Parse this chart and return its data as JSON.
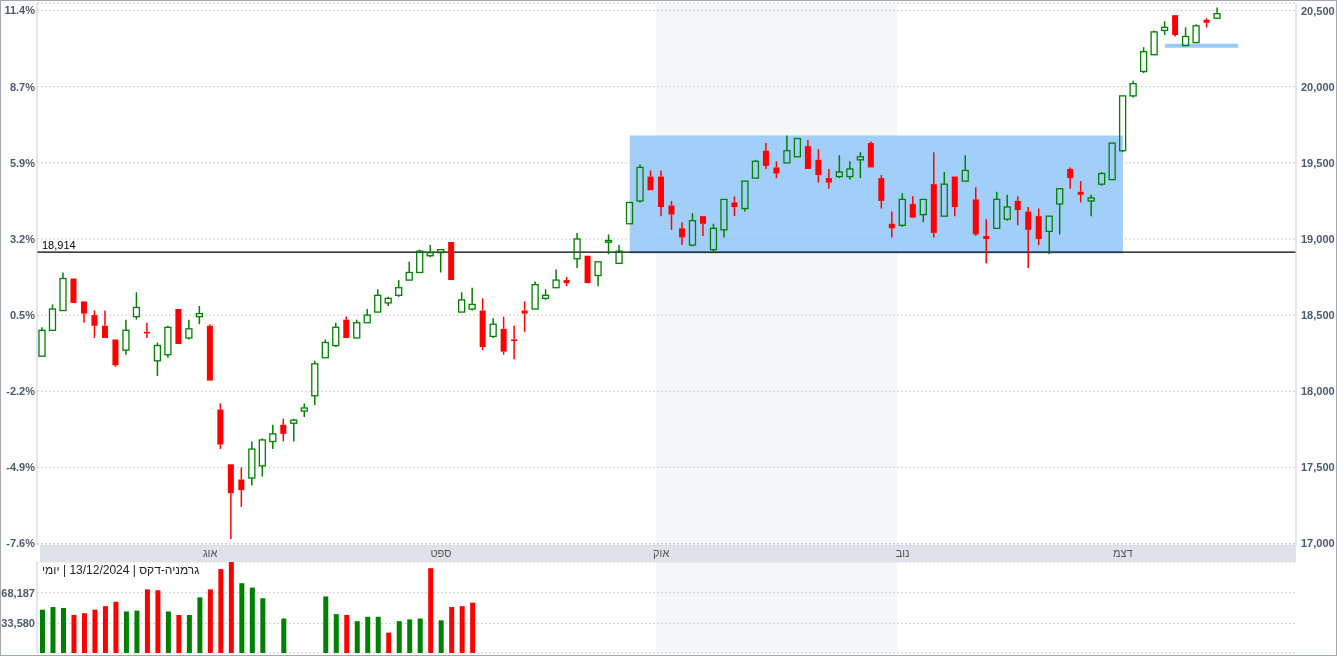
{
  "chart_data": [
    {
      "type": "candlestick",
      "categories": [
        null,
        null,
        null,
        null,
        null,
        null,
        null,
        null,
        null,
        null,
        null,
        null,
        null,
        null,
        null,
        null,
        "אוג",
        null,
        null,
        null,
        null,
        null,
        null,
        null,
        null,
        null,
        null,
        null,
        null,
        null,
        null,
        null,
        null,
        null,
        null,
        null,
        null,
        null,
        "ספט",
        null,
        null,
        null,
        null,
        null,
        null,
        null,
        null,
        null,
        null,
        null,
        null,
        null,
        null,
        null,
        null,
        null,
        null,
        null,
        null,
        "אוק",
        null,
        null,
        null,
        null,
        null,
        null,
        null,
        null,
        null,
        null,
        null,
        null,
        null,
        null,
        null,
        null,
        null,
        null,
        null,
        null,
        null,
        null,
        "נוב",
        null,
        null,
        null,
        null,
        null,
        null,
        null,
        null,
        null,
        null,
        null,
        null,
        null,
        null,
        null,
        null,
        null,
        null,
        null,
        null,
        "דצמ",
        null,
        null,
        null,
        null,
        null,
        null,
        null,
        null,
        null,
        null,
        null,
        null,
        null,
        null,
        null,
        null
      ],
      "series": [
        {
          "type": "area",
          "axis": "y2",
          "color": "#99cbf9",
          "values": [
            null,
            null,
            null,
            null,
            null,
            null,
            null,
            null,
            null,
            null,
            null,
            null,
            null,
            null,
            null,
            null,
            null,
            null,
            null,
            null,
            null,
            null,
            null,
            null,
            null,
            null,
            null,
            null,
            null,
            null,
            null,
            null,
            null,
            null,
            null,
            null,
            null,
            null,
            null,
            null,
            null,
            null,
            null,
            null,
            null,
            null,
            null,
            null,
            null,
            null,
            null,
            null,
            null,
            null,
            null,
            null,
            null,
            null,
            null,
            null,
            null,
            null,
            null,
            null,
            null,
            null,
            null,
            null,
            null,
            null,
            null,
            null,
            null,
            null,
            null,
            null,
            null,
            null,
            null,
            null,
            null,
            null,
            null,
            null,
            null,
            null,
            null,
            null,
            null,
            null,
            null,
            null,
            null,
            null,
            null,
            null,
            null,
            null,
            null,
            null,
            null,
            null,
            null,
            null,
            null,
            null,
            null,
            null,
            null,
            null,
            null,
            null,
            null,
            null,
            null,
            null,
            null,
            null,
            null,
            null
          ],
          "lower": [
            null,
            null,
            null,
            null,
            null,
            null,
            null,
            null,
            null,
            null,
            null,
            null,
            null,
            null,
            null,
            null,
            null,
            null,
            null,
            null,
            null,
            null,
            null,
            null,
            null,
            null,
            null,
            null,
            null,
            null,
            null,
            null,
            null,
            null,
            null,
            null,
            null,
            null,
            null,
            null,
            null,
            null,
            null,
            null,
            null,
            null,
            null,
            null,
            null,
            null,
            null,
            null,
            null,
            null,
            null,
            null,
            18905,
            18905,
            18905,
            18905,
            18905,
            18905,
            18905,
            18905,
            18905,
            18905,
            18905,
            18905,
            18905,
            18905,
            18905,
            18905,
            18905,
            18905,
            18905,
            18905,
            18905,
            18905,
            18905,
            18905,
            18905,
            18905,
            18905,
            18905,
            18905,
            18905,
            18905,
            18905,
            18905,
            18905,
            18905,
            18905,
            18905,
            18905,
            18905,
            18905,
            18905,
            18905,
            18905,
            18905,
            18905,
            18905,
            18905,
            18905,
            null,
            null,
            null,
            null,
            null,
            null,
            null,
            null,
            null,
            null,
            null,
            null,
            null,
            null,
            null,
            null
          ],
          "upper": [
            null,
            null,
            null,
            null,
            null,
            null,
            null,
            null,
            null,
            null,
            null,
            null,
            null,
            null,
            null,
            null,
            null,
            null,
            null,
            null,
            null,
            null,
            null,
            null,
            null,
            null,
            null,
            null,
            null,
            null,
            null,
            null,
            null,
            null,
            null,
            null,
            null,
            null,
            null,
            null,
            null,
            null,
            null,
            null,
            null,
            null,
            null,
            null,
            null,
            null,
            null,
            null,
            null,
            null,
            null,
            null,
            19680,
            19680,
            19680,
            19680,
            19680,
            19680,
            19680,
            19680,
            19680,
            19680,
            19680,
            19680,
            19680,
            19680,
            19680,
            19680,
            19680,
            19680,
            19680,
            19680,
            19680,
            19680,
            19680,
            19680,
            19680,
            19680,
            19680,
            19680,
            19680,
            19680,
            19680,
            19680,
            19680,
            19680,
            19680,
            19680,
            19680,
            19680,
            19680,
            19680,
            19680,
            19680,
            19680,
            19680,
            19680,
            19680,
            19680,
            19680,
            null,
            null,
            null,
            null,
            null,
            null,
            null,
            null,
            null,
            null,
            null,
            null,
            null,
            null,
            null,
            null
          ]
        },
        {
          "type": "line",
          "axis": "y2",
          "color": "#99cbf9",
          "values": [
            null,
            null,
            null,
            null,
            null,
            null,
            null,
            null,
            null,
            null,
            null,
            null,
            null,
            null,
            null,
            null,
            null,
            null,
            null,
            null,
            null,
            null,
            null,
            null,
            null,
            null,
            null,
            null,
            null,
            null,
            null,
            null,
            null,
            null,
            null,
            null,
            null,
            null,
            null,
            null,
            null,
            null,
            null,
            null,
            null,
            null,
            null,
            null,
            null,
            null,
            null,
            null,
            null,
            null,
            null,
            null,
            null,
            null,
            null,
            null,
            null,
            null,
            null,
            null,
            null,
            null,
            null,
            null,
            null,
            null,
            null,
            null,
            null,
            null,
            null,
            null,
            null,
            null,
            null,
            null,
            null,
            null,
            null,
            null,
            null,
            null,
            null,
            null,
            null,
            null,
            null,
            null,
            null,
            null,
            null,
            null,
            null,
            null,
            null,
            null,
            null,
            null,
            null,
            null,
            null,
            null,
            null,
            20270,
            20270,
            20270,
            20270,
            20270,
            20270,
            20270,
            20270,
            null,
            null,
            null,
            null,
            null
          ]
        },
        {
          "axis": "y2",
          "ohlc": [
            [
              18230,
              18420,
              18230,
              18400
            ],
            [
              18400,
              18570,
              18400,
              18540
            ],
            [
              18530,
              18780,
              18530,
              18740
            ],
            [
              18740,
              18740,
              18580,
              18580
            ],
            [
              18590,
              18590,
              18450,
              18510
            ],
            [
              18500,
              18530,
              18350,
              18430
            ],
            [
              18430,
              18530,
              18350,
              18350
            ],
            [
              18340,
              18340,
              18160,
              18170
            ],
            [
              18270,
              18470,
              18240,
              18400
            ],
            [
              18490,
              18650,
              18470,
              18550
            ],
            [
              18390,
              18450,
              18350,
              18380
            ],
            [
              18200,
              18320,
              18100,
              18300
            ],
            [
              18240,
              18430,
              18220,
              18420
            ],
            [
              18540,
              18540,
              18310,
              18310
            ],
            [
              18350,
              18470,
              18340,
              18410
            ],
            [
              18490,
              18560,
              18440,
              18510
            ],
            [
              18430,
              18440,
              18070,
              18070
            ],
            [
              17880,
              17920,
              17620,
              17650
            ],
            [
              17520,
              17520,
              17030,
              17330
            ],
            [
              17420,
              17500,
              17240,
              17350
            ],
            [
              17430,
              17670,
              17380,
              17620
            ],
            [
              17510,
              17690,
              17440,
              17680
            ],
            [
              17670,
              17780,
              17620,
              17720
            ],
            [
              17780,
              17820,
              17670,
              17720
            ],
            [
              17790,
              17820,
              17670,
              17810
            ],
            [
              17870,
              17920,
              17830,
              17890
            ],
            [
              17970,
              18200,
              17910,
              18180
            ],
            [
              18220,
              18340,
              18220,
              18320
            ],
            [
              18300,
              18450,
              18290,
              18420
            ],
            [
              18470,
              18490,
              18350,
              18350
            ],
            [
              18350,
              18470,
              18350,
              18450
            ],
            [
              18450,
              18540,
              18450,
              18500
            ],
            [
              18520,
              18670,
              18520,
              18630
            ],
            [
              18580,
              18620,
              18560,
              18610
            ],
            [
              18630,
              18730,
              18620,
              18680
            ],
            [
              18730,
              18850,
              18730,
              18780
            ],
            [
              18780,
              18930,
              18780,
              18920
            ],
            [
              18890,
              18960,
              18880,
              18910
            ],
            [
              18910,
              18930,
              18780,
              18930
            ],
            [
              18980,
              18980,
              18730,
              18730
            ],
            [
              18520,
              18650,
              18520,
              18600
            ],
            [
              18540,
              18680,
              18530,
              18570
            ],
            [
              18530,
              18610,
              18270,
              18290
            ],
            [
              18360,
              18480,
              18350,
              18440
            ],
            [
              18410,
              18490,
              18240,
              18260
            ],
            [
              18340,
              18430,
              18210,
              18330
            ],
            [
              18530,
              18590,
              18390,
              18510
            ],
            [
              18540,
              18720,
              18540,
              18700
            ],
            [
              18610,
              18670,
              18600,
              18630
            ],
            [
              18680,
              18800,
              18680,
              18730
            ],
            [
              18730,
              18750,
              18690,
              18710
            ],
            [
              18870,
              19040,
              18810,
              19000
            ],
            [
              18890,
              18890,
              18710,
              18710
            ],
            [
              18760,
              18850,
              18690,
              18850
            ],
            [
              18980,
              19030,
              18900,
              18990
            ],
            [
              18840,
              18960,
              18840,
              18920
            ],
            [
              19100,
              19240,
              19100,
              19240
            ],
            [
              19250,
              19490,
              19240,
              19470
            ],
            [
              19410,
              19450,
              19320,
              19320
            ],
            [
              19410,
              19450,
              19150,
              19210
            ],
            [
              19220,
              19250,
              19060,
              19160
            ],
            [
              19070,
              19110,
              18960,
              19010
            ],
            [
              18960,
              19170,
              18950,
              19120
            ],
            [
              19150,
              19150,
              19020,
              19100
            ],
            [
              18930,
              19100,
              18910,
              19070
            ],
            [
              19060,
              19260,
              19010,
              19260
            ],
            [
              19240,
              19280,
              19150,
              19210
            ],
            [
              19200,
              19380,
              19180,
              19380
            ],
            [
              19400,
              19520,
              19400,
              19510
            ],
            [
              19580,
              19630,
              19460,
              19480
            ],
            [
              19470,
              19510,
              19400,
              19430
            ],
            [
              19500,
              19680,
              19500,
              19580
            ],
            [
              19540,
              19660,
              19540,
              19660
            ],
            [
              19610,
              19650,
              19460,
              19460
            ],
            [
              19520,
              19590,
              19370,
              19420
            ],
            [
              19400,
              19460,
              19330,
              19370
            ],
            [
              19410,
              19550,
              19400,
              19440
            ],
            [
              19410,
              19510,
              19390,
              19460
            ],
            [
              19520,
              19570,
              19400,
              19540
            ],
            [
              19630,
              19640,
              19470,
              19470
            ],
            [
              19400,
              19420,
              19200,
              19250
            ],
            [
              19100,
              19180,
              19010,
              19070
            ],
            [
              19090,
              19300,
              19080,
              19260
            ],
            [
              19230,
              19280,
              19140,
              19140
            ],
            [
              19160,
              19260,
              19110,
              19260
            ],
            [
              19360,
              19570,
              19010,
              19040
            ],
            [
              19150,
              19440,
              19150,
              19360
            ],
            [
              19410,
              19410,
              19150,
              19210
            ],
            [
              19380,
              19550,
              19380,
              19450
            ],
            [
              19260,
              19340,
              19020,
              19030
            ],
            [
              19020,
              19130,
              18840,
              19000
            ],
            [
              19070,
              19310,
              19070,
              19260
            ],
            [
              19130,
              19290,
              19120,
              19210
            ],
            [
              19250,
              19280,
              19090,
              19190
            ],
            [
              19180,
              19210,
              18810,
              19060
            ],
            [
              19150,
              19200,
              18960,
              19000
            ],
            [
              19050,
              19150,
              18900,
              19150
            ],
            [
              19230,
              19330,
              19030,
              19330
            ],
            [
              19460,
              19470,
              19330,
              19400
            ],
            [
              19310,
              19380,
              19240,
              19290
            ],
            [
              19250,
              19290,
              19150,
              19270
            ],
            [
              19360,
              19440,
              19350,
              19430
            ],
            [
              19390,
              19630,
              19390,
              19630
            ],
            [
              19580,
              19940,
              19570,
              19940
            ],
            [
              19940,
              20040,
              19930,
              20020
            ],
            [
              20100,
              20260,
              20090,
              20230
            ],
            [
              20210,
              20370,
              20210,
              20360
            ],
            [
              20370,
              20430,
              20340,
              20390
            ],
            [
              20470,
              20470,
              20330,
              20340
            ],
            [
              20270,
              20390,
              20270,
              20330
            ],
            [
              20290,
              20410,
              20290,
              20400
            ],
            [
              20440,
              20450,
              20390,
              20420
            ],
            [
              20450,
              20520,
              20450,
              20480
            ],
            null,
            null,
            null,
            null,
            null,
            null,
            null
          ],
          "colors": [
            "#008000",
            "#008000",
            "#008000",
            "#ff0000",
            "#ff0000",
            "#ff0000",
            "#ff0000",
            "#ff0000",
            "#008000",
            "#008000",
            "#ff0000",
            "#008000",
            "#008000",
            "#ff0000",
            "#008000",
            "#008000",
            "#ff0000",
            "#ff0000",
            "#ff0000",
            "#ff0000",
            "#008000",
            "#008000",
            "#008000",
            "#ff0000",
            "#008000",
            "#008000",
            "#008000",
            "#008000",
            "#008000",
            "#ff0000",
            "#008000",
            "#008000",
            "#008000",
            "#008000",
            "#008000",
            "#008000",
            "#008000",
            "#008000",
            "#008000",
            "#ff0000",
            "#008000",
            "#008000",
            "#ff0000",
            "#008000",
            "#ff0000",
            "#ff0000",
            "#ff0000",
            "#008000",
            "#008000",
            "#008000",
            "#ff0000",
            "#008000",
            "#ff0000",
            "#008000",
            "#008000",
            "#008000",
            "#008000",
            "#008000",
            "#ff0000",
            "#ff0000",
            "#ff0000",
            "#ff0000",
            "#008000",
            "#ff0000",
            "#008000",
            "#008000",
            "#ff0000",
            "#008000",
            "#008000",
            "#ff0000",
            "#ff0000",
            "#008000",
            "#008000",
            "#ff0000",
            "#ff0000",
            "#ff0000",
            "#008000",
            "#008000",
            "#008000",
            "#ff0000",
            "#ff0000",
            "#ff0000",
            "#008000",
            "#ff0000",
            "#008000",
            "#ff0000",
            "#008000",
            "#ff0000",
            "#008000",
            "#ff0000",
            "#ff0000",
            "#008000",
            "#008000",
            "#ff0000",
            "#ff0000",
            "#ff0000",
            "#008000",
            "#008000",
            "#ff0000",
            "#ff0000",
            "#008000",
            "#008000",
            "#008000",
            "#008000",
            "#008000",
            "#008000",
            "#008000",
            "#008000",
            "#ff0000",
            "#008000",
            "#008000",
            "#ff0000",
            "#008000",
            null,
            null,
            null,
            null,
            null,
            null,
            null
          ]
        }
      ],
      "ylim": [
        -7.7,
        11.64
      ],
      "yticks": [
        {
          "value": -7.644,
          "label": "-7.6%"
        },
        {
          "value": -4.927,
          "label": "-4.9%"
        },
        {
          "value": -2.211,
          "label": "-2.2%"
        },
        {
          "value": 0.505,
          "label": "0.5%"
        },
        {
          "value": 3.222,
          "label": "3.2%"
        },
        {
          "value": 5.938,
          "label": "5.9%"
        },
        {
          "value": 8.654,
          "label": "8.7%"
        },
        {
          "value": 11.37,
          "label": "11.4%"
        }
      ],
      "y2lim": [
        16990,
        20550
      ],
      "y2ticks": [
        {
          "value": 17000,
          "label": "17,000"
        },
        {
          "value": 17500,
          "label": "17,500"
        },
        {
          "value": 18000,
          "label": "18,000"
        },
        {
          "value": 18500,
          "label": "18,500"
        },
        {
          "value": 19000,
          "label": "19,000"
        },
        {
          "value": 19500,
          "label": "19,500"
        },
        {
          "value": 20000,
          "label": "20,000"
        },
        {
          "value": 20500,
          "label": "20,500"
        }
      ],
      "ref_lines": [
        {
          "axis": "y2",
          "value": 18914,
          "label": "18,914",
          "color": "#000000"
        }
      ],
      "bands": [
        {
          "axis": "x",
          "from": "אוק",
          "to": "נוב",
          "color": "#f4f6f8"
        }
      ],
      "grid": "y"
    },
    {
      "type": "bar",
      "title": "גרמניה-דקס | 13/12/2024 | יומי",
      "categories": [
        null,
        null,
        null,
        null,
        null,
        null,
        null,
        null,
        null,
        null,
        null,
        null,
        null,
        null,
        null,
        null,
        "אוג",
        null,
        null,
        null,
        null,
        null,
        null,
        null,
        null,
        null,
        null,
        null,
        null,
        null,
        null,
        null,
        null,
        null,
        null,
        null,
        null,
        null,
        "ספט",
        null,
        null,
        null,
        null,
        null,
        null,
        null,
        null,
        null,
        null,
        null,
        null,
        null,
        null,
        null,
        null,
        null,
        null,
        null,
        null,
        "אוק",
        null,
        null,
        null,
        null,
        null,
        null,
        null,
        null,
        null,
        null,
        null,
        null,
        null,
        null,
        null,
        null,
        null,
        null,
        null,
        null,
        null,
        null,
        "נוב",
        null,
        null,
        null,
        null,
        null,
        null,
        null,
        null,
        null,
        null,
        null,
        null,
        null,
        null,
        null,
        null,
        null,
        null,
        null,
        null,
        "דצמ",
        null,
        null,
        null,
        null,
        null,
        null,
        null,
        null,
        null,
        null,
        null,
        null,
        null,
        null,
        null,
        null
      ],
      "values": [
        49000,
        52000,
        51000,
        43000,
        45000,
        49000,
        53000,
        58000,
        47000,
        48000,
        72000,
        71000,
        47000,
        43000,
        43000,
        63000,
        72000,
        95000,
        103000,
        79000,
        74000,
        62000,
        null,
        39000,
        null,
        null,
        null,
        64000,
        44000,
        43000,
        36000,
        41000,
        41000,
        23000,
        36000,
        38000,
        39000,
        96000,
        37000,
        52000,
        53000,
        57000,
        null,
        null,
        null,
        null,
        null,
        null,
        null,
        null,
        null,
        null,
        null,
        null,
        null,
        null,
        null,
        null,
        null,
        null,
        null,
        null,
        null,
        null,
        null,
        null,
        null,
        null,
        null,
        null,
        null,
        null,
        null,
        null,
        null,
        null,
        null,
        null,
        null,
        null,
        null,
        null,
        null,
        null,
        null,
        null,
        null,
        null,
        null,
        null,
        null,
        null,
        null,
        null,
        null,
        null,
        null,
        null,
        null,
        null,
        null,
        null,
        null,
        null,
        null,
        null,
        null,
        null,
        null,
        null,
        null,
        null,
        null,
        null,
        null,
        null,
        null,
        null,
        null,
        null
      ],
      "colors": [
        "#008000",
        "#008000",
        "#008000",
        "#ff0000",
        "#ff0000",
        "#ff0000",
        "#ff0000",
        "#ff0000",
        "#008000",
        "#008000",
        "#ff0000",
        "#ff0000",
        "#008000",
        "#ff0000",
        "#008000",
        "#008000",
        "#ff0000",
        "#ff0000",
        "#ff0000",
        "#008000",
        "#008000",
        "#008000",
        null,
        "#008000",
        null,
        null,
        null,
        "#008000",
        "#008000",
        "#ff0000",
        "#008000",
        "#008000",
        "#008000",
        "#ff0000",
        "#008000",
        "#008000",
        "#008000",
        "#ff0000",
        "#008000",
        "#ff0000",
        "#ff0000",
        "#ff0000",
        null,
        null,
        null,
        null,
        null,
        null,
        null,
        null,
        null,
        null,
        null,
        null,
        null,
        null,
        null,
        null,
        null,
        null,
        null,
        null,
        null,
        null,
        null,
        null,
        null,
        null,
        null,
        null,
        null,
        null,
        null,
        null,
        null,
        null,
        null,
        null,
        null,
        null,
        null,
        null,
        null,
        null,
        null,
        null,
        null,
        null,
        null,
        null,
        null,
        null,
        null,
        null,
        null,
        null,
        null,
        null,
        null,
        null,
        null,
        null,
        null,
        null,
        null,
        null,
        null,
        null,
        null,
        null,
        null,
        null,
        null,
        null,
        null,
        null,
        null,
        null,
        null,
        null
      ],
      "ylim": [
        0,
        103000
      ],
      "yticks": [
        {
          "value": 33580,
          "label": "33,580"
        },
        {
          "value": 68187,
          "label": "68,187"
        }
      ],
      "bands": [
        {
          "axis": "x",
          "from": "אוק",
          "to": "נוב",
          "color": "#f4f6f8"
        }
      ],
      "grid": "y",
      "tick_labels": "y"
    }
  ]
}
